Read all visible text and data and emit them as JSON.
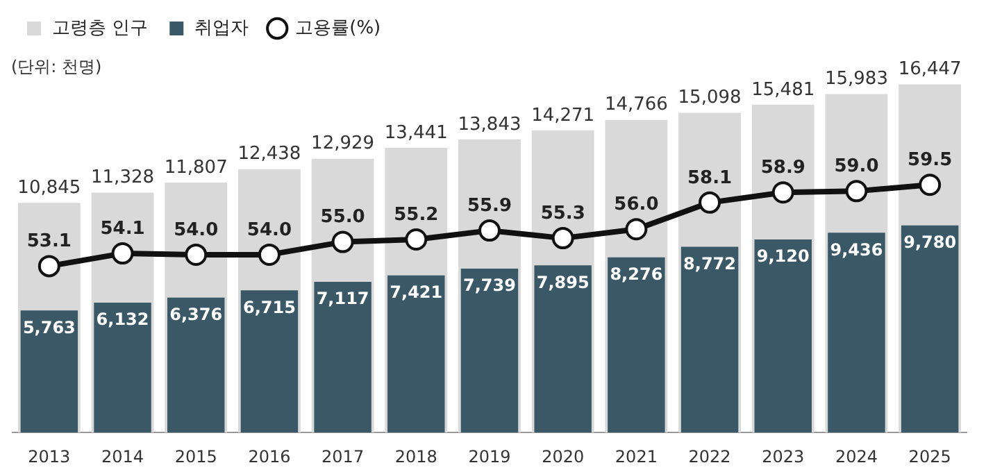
{
  "chart_data": {
    "type": "bar",
    "categories": [
      "2013",
      "2014",
      "2015",
      "2016",
      "2017",
      "2018",
      "2019",
      "2020",
      "2021",
      "2022",
      "2023",
      "2024",
      "2025"
    ],
    "series": [
      {
        "name": "고령층 인구",
        "color": "#d9d9d9",
        "values": [
          10845,
          11328,
          11807,
          12438,
          12929,
          13441,
          13843,
          14271,
          14766,
          15098,
          15481,
          15983,
          16447
        ],
        "value_labels": [
          "10,845",
          "11,328",
          "11,807",
          "12,438",
          "12,929",
          "13,441",
          "13,843",
          "14,271",
          "14,766",
          "15,098",
          "15,481",
          "15,983",
          "16,447"
        ]
      },
      {
        "name": "취업자",
        "color": "#3b5866",
        "values": [
          5763,
          6132,
          6376,
          6715,
          7117,
          7421,
          7739,
          7895,
          8276,
          8772,
          9120,
          9436,
          9780
        ],
        "value_labels": [
          "5,763",
          "6,132",
          "6,376",
          "6,715",
          "7,117",
          "7,421",
          "7,739",
          "7,895",
          "8,276",
          "8,772",
          "9,120",
          "9,436",
          "9,780"
        ]
      },
      {
        "name": "고용률(%)",
        "type": "line",
        "axis": "y2",
        "color": "#111111",
        "values": [
          53.1,
          54.1,
          54.0,
          54.0,
          55.0,
          55.2,
          55.9,
          55.3,
          56.0,
          58.1,
          58.9,
          59.0,
          59.5
        ],
        "value_labels": [
          "53.1",
          "54.1",
          "54.0",
          "54.0",
          "55.0",
          "55.2",
          "55.9",
          "55.3",
          "56.0",
          "58.1",
          "58.9",
          "59.0",
          "59.5"
        ]
      }
    ],
    "annotations": [
      "(단위: 천명)"
    ],
    "tick_labels": "x",
    "grid": false,
    "legend": "top left",
    "marker": "circle"
  }
}
